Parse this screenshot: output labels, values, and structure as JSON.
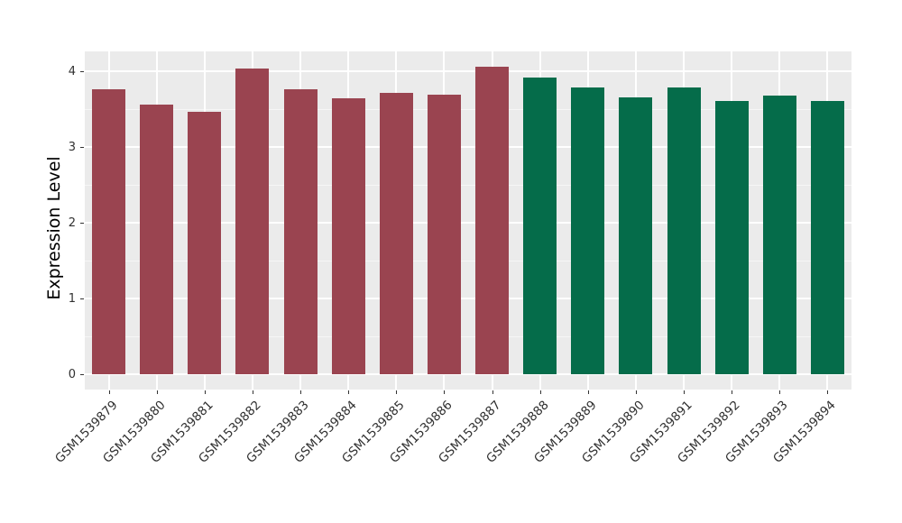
{
  "chart_data": {
    "type": "bar",
    "title": "",
    "xlabel": "",
    "ylabel": "Expression Level",
    "categories": [
      "GSM1539879",
      "GSM1539880",
      "GSM1539881",
      "GSM1539882",
      "GSM1539883",
      "GSM1539884",
      "GSM1539885",
      "GSM1539886",
      "GSM1539887",
      "GSM1539888",
      "GSM1539889",
      "GSM1539890",
      "GSM1539891",
      "GSM1539892",
      "GSM1539893",
      "GSM1539894"
    ],
    "values": [
      3.76,
      3.56,
      3.47,
      4.04,
      3.76,
      3.64,
      3.72,
      3.69,
      4.06,
      3.92,
      3.79,
      3.65,
      3.79,
      3.61,
      3.68,
      3.61
    ],
    "groups": [
      0,
      0,
      0,
      0,
      0,
      0,
      0,
      0,
      0,
      1,
      1,
      1,
      1,
      1,
      1,
      1
    ],
    "group_colors": [
      "#9A4450",
      "#056C4A"
    ],
    "yticks": [
      "0",
      "1",
      "2",
      "3",
      "4"
    ],
    "ytick_values": [
      0,
      1,
      2,
      3,
      4
    ],
    "minor_tick_values": [
      0.5,
      1.5,
      2.5,
      3.5
    ],
    "ylim": [
      0,
      4.26
    ],
    "grid": "on",
    "legend_position": "none",
    "panel_bg": "#EBEBEB",
    "grid_major_color": "#FFFFFF",
    "grid_minor_color": "#FFFFFF",
    "axis_text_color": "#303030",
    "axis_title_color": "#000000",
    "tick_mark_color": "#333333"
  }
}
